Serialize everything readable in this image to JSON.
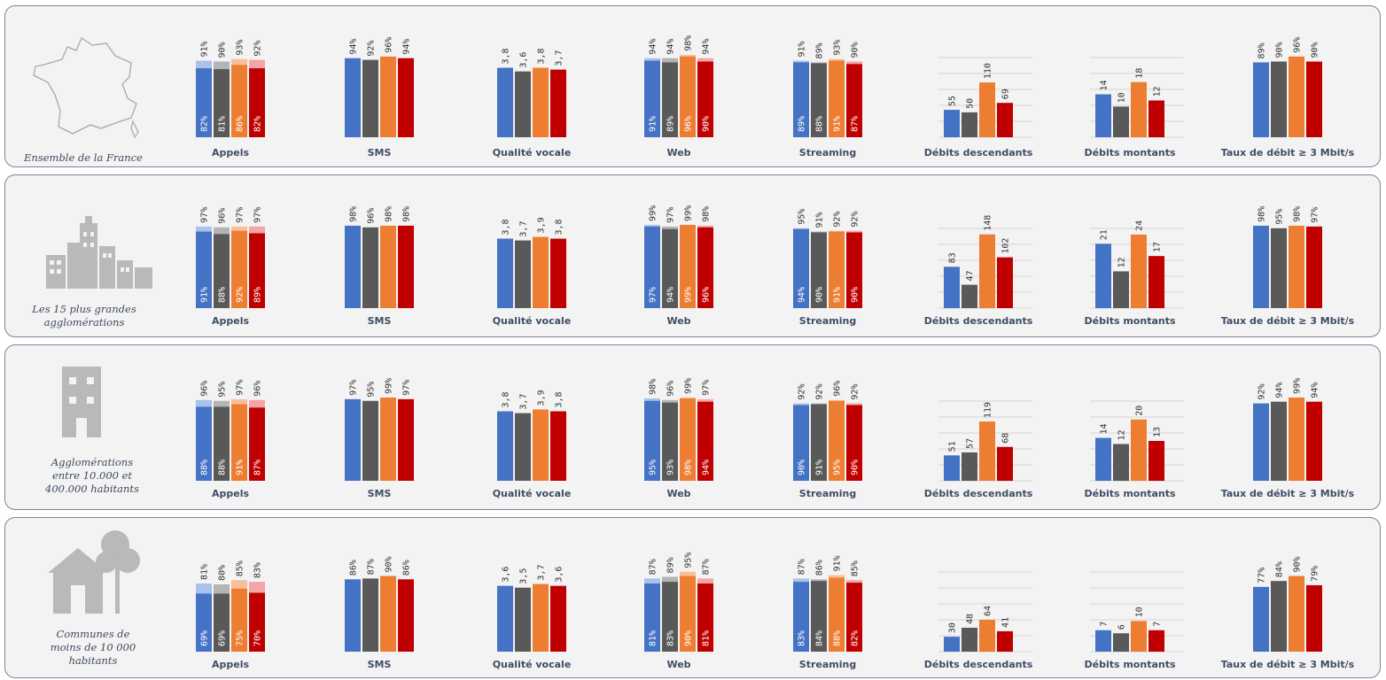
{
  "colors": {
    "operators": [
      "#4472c4",
      "#595959",
      "#ed7d31",
      "#c00000"
    ],
    "operators_light": [
      "#a9c2ea",
      "#b4b4b4",
      "#f8c09a",
      "#f4a5a5"
    ],
    "gridline": "#d4d4d4",
    "panel_bg": "#f3f3f3",
    "panel_border": "#7a8497",
    "label_text": "#3f4d64"
  },
  "panels": [
    {
      "zone_label": "Ensemble de la France",
      "icon": "france-map-icon"
    },
    {
      "zone_label": "Les 15 plus grandes agglomérations",
      "icon": "city-skyline-icon"
    },
    {
      "zone_label": "Agglomérations entre 10.000 et 400.000 habitants",
      "icon": "building-icon"
    },
    {
      "zone_label": "Communes de moins de 10 000 habitants",
      "icon": "house-tree-icon"
    }
  ],
  "chart_data": [
    {
      "type": "bar",
      "zone": "Ensemble de la France",
      "groups": [
        {
          "category": "Appels",
          "top": [
            "91%",
            "90%",
            "93%",
            "92%"
          ],
          "inner": [
            "82%",
            "81%",
            "86%",
            "82%"
          ],
          "unit": "%",
          "top_values": [
            91,
            90,
            93,
            92
          ],
          "inner_values": [
            82,
            81,
            86,
            82
          ]
        },
        {
          "category": "SMS",
          "top": [
            "94%",
            "92%",
            "96%",
            "94%"
          ],
          "unit": "%",
          "top_values": [
            94,
            92,
            96,
            94
          ]
        },
        {
          "category": "Qualité vocale",
          "top": [
            "3,8",
            "3,6",
            "3,8",
            "3,7"
          ],
          "unit": "score",
          "top_values": [
            3.8,
            3.6,
            3.8,
            3.7
          ]
        },
        {
          "category": "Web",
          "top": [
            "94%",
            "94%",
            "98%",
            "94%"
          ],
          "inner": [
            "91%",
            "89%",
            "96%",
            "90%"
          ],
          "unit": "%",
          "top_values": [
            94,
            94,
            98,
            94
          ],
          "inner_values": [
            91,
            89,
            96,
            90
          ]
        },
        {
          "category": "Streaming",
          "top": [
            "91%",
            "89%",
            "93%",
            "90%"
          ],
          "inner": [
            "89%",
            "88%",
            "91%",
            "87%"
          ],
          "unit": "%",
          "top_values": [
            91,
            89,
            93,
            90
          ],
          "inner_values": [
            89,
            88,
            91,
            87
          ]
        },
        {
          "category": "Débits descendants",
          "top": [
            "55",
            "50",
            "110",
            "69"
          ],
          "unit": "Mbit/s",
          "top_values": [
            55,
            50,
            110,
            69
          ],
          "grid": true
        },
        {
          "category": "Débits montants",
          "top": [
            "14",
            "10",
            "18",
            "12"
          ],
          "unit": "Mbit/s",
          "top_values": [
            14,
            10,
            18,
            12
          ],
          "grid": true
        },
        {
          "category": "Taux de débit ≥ 3 Mbit/s",
          "top": [
            "89%",
            "90%",
            "96%",
            "90%"
          ],
          "unit": "%",
          "top_values": [
            89,
            90,
            96,
            90
          ]
        }
      ]
    },
    {
      "type": "bar",
      "zone": "Les 15 plus grandes agglomérations",
      "groups": [
        {
          "category": "Appels",
          "top": [
            "97%",
            "96%",
            "97%",
            "97%"
          ],
          "inner": [
            "91%",
            "88%",
            "92%",
            "89%"
          ],
          "unit": "%",
          "top_values": [
            97,
            96,
            97,
            97
          ],
          "inner_values": [
            91,
            88,
            92,
            89
          ]
        },
        {
          "category": "SMS",
          "top": [
            "98%",
            "96%",
            "98%",
            "98%"
          ],
          "unit": "%",
          "top_values": [
            98,
            96,
            98,
            98
          ]
        },
        {
          "category": "Qualité vocale",
          "top": [
            "3,8",
            "3,7",
            "3,9",
            "3,8"
          ],
          "unit": "score",
          "top_values": [
            3.8,
            3.7,
            3.9,
            3.8
          ]
        },
        {
          "category": "Web",
          "top": [
            "99%",
            "97%",
            "99%",
            "98%"
          ],
          "inner": [
            "97%",
            "94%",
            "99%",
            "96%"
          ],
          "unit": "%",
          "top_values": [
            99,
            97,
            99,
            98
          ],
          "inner_values": [
            97,
            94,
            99,
            96
          ]
        },
        {
          "category": "Streaming",
          "top": [
            "95%",
            "91%",
            "92%",
            "92%"
          ],
          "inner": [
            "94%",
            "90%",
            "91%",
            "90%"
          ],
          "unit": "%",
          "top_values": [
            95,
            91,
            92,
            92
          ],
          "inner_values": [
            94,
            90,
            91,
            90
          ]
        },
        {
          "category": "Débits descendants",
          "top": [
            "83",
            "47",
            "148",
            "102"
          ],
          "unit": "Mbit/s",
          "top_values": [
            83,
            47,
            148,
            102
          ],
          "grid": true
        },
        {
          "category": "Débits montants",
          "top": [
            "21",
            "12",
            "24",
            "17"
          ],
          "unit": "Mbit/s",
          "top_values": [
            21,
            12,
            24,
            17
          ],
          "grid": true
        },
        {
          "category": "Taux de débit ≥ 3 Mbit/s",
          "top": [
            "98%",
            "95%",
            "98%",
            "97%"
          ],
          "unit": "%",
          "top_values": [
            98,
            95,
            98,
            97
          ]
        }
      ]
    },
    {
      "type": "bar",
      "zone": "Agglomérations entre 10.000 et 400.000 habitants",
      "groups": [
        {
          "category": "Appels",
          "top": [
            "96%",
            "95%",
            "97%",
            "96%"
          ],
          "inner": [
            "88%",
            "88%",
            "91%",
            "87%"
          ],
          "unit": "%",
          "top_values": [
            96,
            95,
            97,
            96
          ],
          "inner_values": [
            88,
            88,
            91,
            87
          ]
        },
        {
          "category": "SMS",
          "top": [
            "97%",
            "95%",
            "99%",
            "97%"
          ],
          "unit": "%",
          "top_values": [
            97,
            95,
            99,
            97
          ]
        },
        {
          "category": "Qualité vocale",
          "top": [
            "3,8",
            "3,7",
            "3,9",
            "3,8"
          ],
          "unit": "score",
          "top_values": [
            3.8,
            3.7,
            3.9,
            3.8
          ]
        },
        {
          "category": "Web",
          "top": [
            "98%",
            "96%",
            "99%",
            "97%"
          ],
          "inner": [
            "95%",
            "93%",
            "98%",
            "94%"
          ],
          "unit": "%",
          "top_values": [
            98,
            96,
            99,
            97
          ],
          "inner_values": [
            95,
            93,
            98,
            94
          ]
        },
        {
          "category": "Streaming",
          "top": [
            "92%",
            "92%",
            "96%",
            "92%"
          ],
          "inner": [
            "90%",
            "91%",
            "95%",
            "90%"
          ],
          "unit": "%",
          "top_values": [
            92,
            92,
            96,
            92
          ],
          "inner_values": [
            90,
            91,
            95,
            90
          ]
        },
        {
          "category": "Débits descendants",
          "top": [
            "51",
            "57",
            "119",
            "68"
          ],
          "unit": "Mbit/s",
          "top_values": [
            51,
            57,
            119,
            68
          ],
          "grid": true
        },
        {
          "category": "Débits montants",
          "top": [
            "14",
            "12",
            "20",
            "13"
          ],
          "unit": "Mbit/s",
          "top_values": [
            14,
            12,
            20,
            13
          ],
          "grid": true
        },
        {
          "category": "Taux de débit ≥ 3 Mbit/s",
          "top": [
            "92%",
            "94%",
            "99%",
            "94%"
          ],
          "unit": "%",
          "top_values": [
            92,
            94,
            99,
            94
          ]
        }
      ]
    },
    {
      "type": "bar",
      "zone": "Communes de moins de 10 000 habitants",
      "groups": [
        {
          "category": "Appels",
          "top": [
            "81%",
            "80%",
            "85%",
            "83%"
          ],
          "inner": [
            "69%",
            "69%",
            "75%",
            "70%"
          ],
          "unit": "%",
          "top_values": [
            81,
            80,
            85,
            83
          ],
          "inner_values": [
            69,
            69,
            75,
            70
          ]
        },
        {
          "category": "SMS",
          "top": [
            "86%",
            "87%",
            "90%",
            "86%"
          ],
          "unit": "%",
          "top_values": [
            86,
            87,
            90,
            86
          ]
        },
        {
          "category": "Qualité vocale",
          "top": [
            "3,6",
            "3,5",
            "3,7",
            "3,6"
          ],
          "unit": "score",
          "top_values": [
            3.6,
            3.5,
            3.7,
            3.6
          ]
        },
        {
          "category": "Web",
          "top": [
            "87%",
            "89%",
            "95%",
            "87%"
          ],
          "inner": [
            "81%",
            "83%",
            "90%",
            "81%"
          ],
          "unit": "%",
          "top_values": [
            87,
            89,
            95,
            87
          ],
          "inner_values": [
            81,
            83,
            90,
            81
          ]
        },
        {
          "category": "Streaming",
          "top": [
            "87%",
            "86%",
            "91%",
            "85%"
          ],
          "inner": [
            "83%",
            "84%",
            "88%",
            "82%"
          ],
          "unit": "%",
          "top_values": [
            87,
            86,
            91,
            85
          ],
          "inner_values": [
            83,
            84,
            88,
            82
          ]
        },
        {
          "category": "Débits descendants",
          "top": [
            "30",
            "48",
            "64",
            "41"
          ],
          "unit": "Mbit/s",
          "top_values": [
            30,
            48,
            64,
            41
          ],
          "grid": true
        },
        {
          "category": "Débits montants",
          "top": [
            "7",
            "6",
            "10",
            "7"
          ],
          "unit": "Mbit/s",
          "top_values": [
            7,
            6,
            10,
            7
          ],
          "grid": true
        },
        {
          "category": "Taux de débit ≥ 3 Mbit/s",
          "top": [
            "77%",
            "84%",
            "90%",
            "79%"
          ],
          "unit": "%",
          "top_values": [
            77,
            84,
            90,
            79
          ]
        }
      ]
    }
  ]
}
